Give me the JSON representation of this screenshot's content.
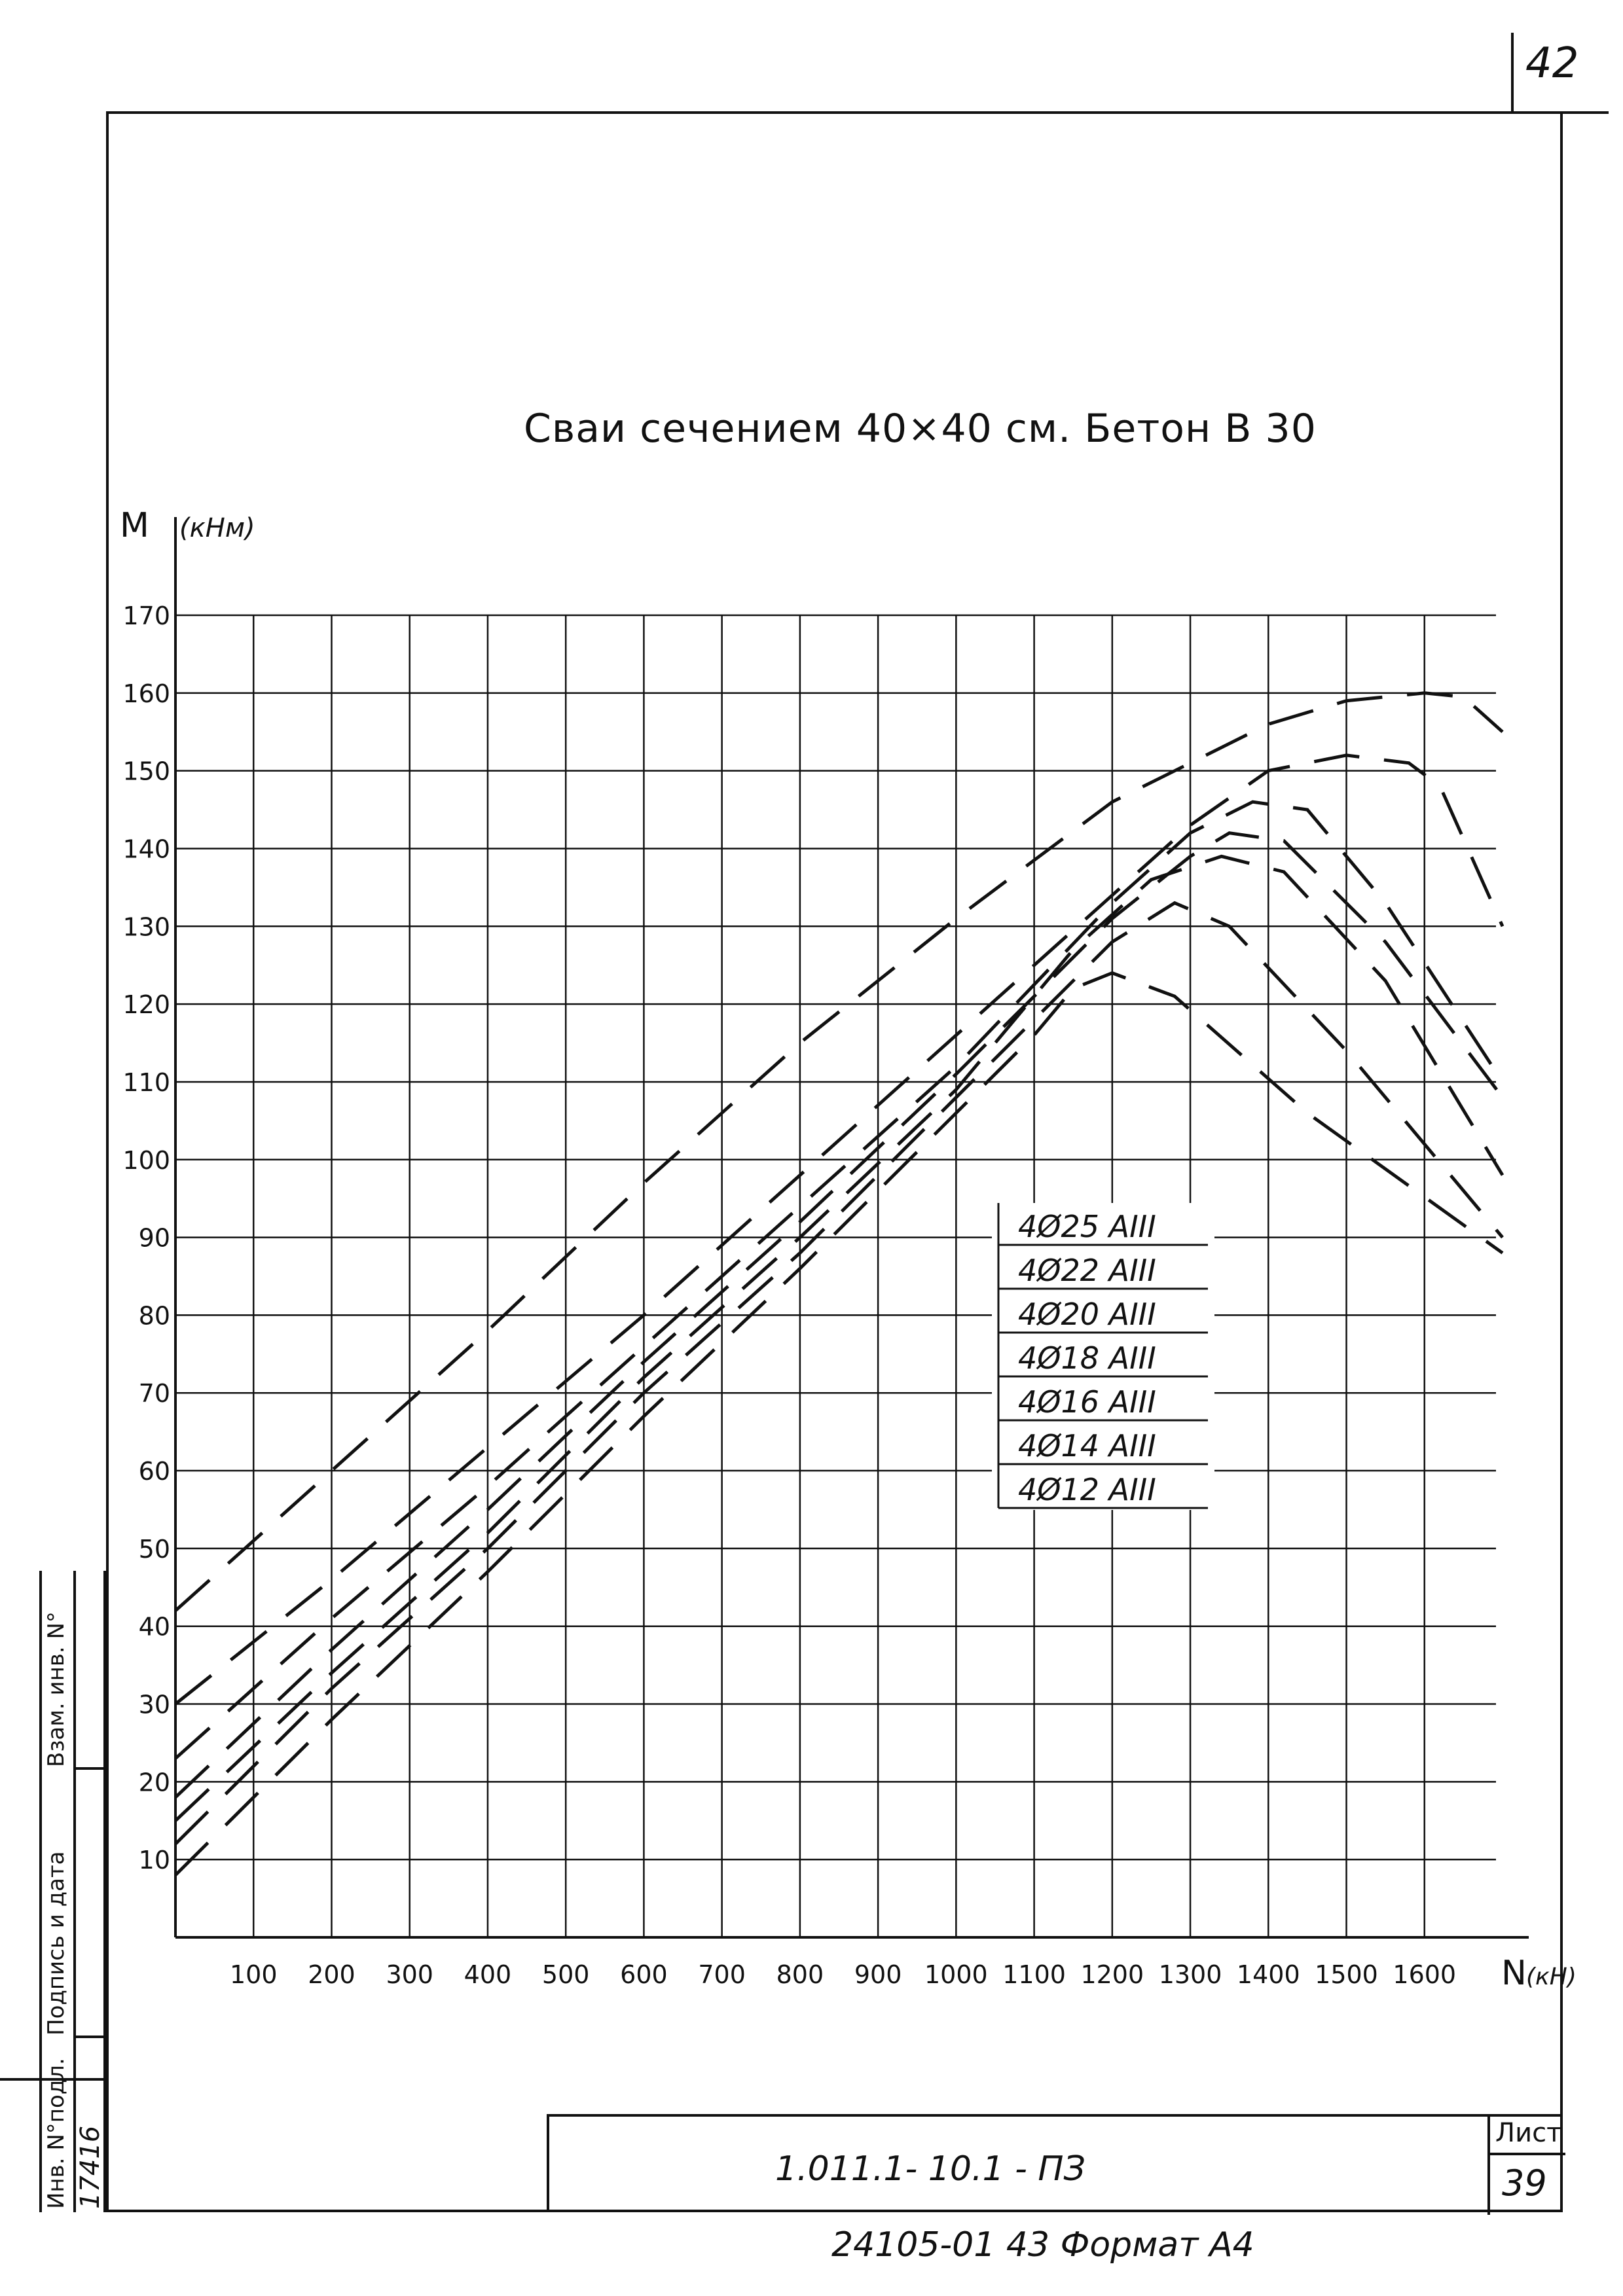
{
  "page_number": "42",
  "chart_data": {
    "type": "line",
    "title": "Сваи сечением 40×40 см. Бетон В 30",
    "ylabel": "M",
    "yunit": "(кНм)",
    "xlabel": "N",
    "xunit": "(кН)",
    "xlim": [
      0,
      1700
    ],
    "ylim": [
      0,
      170
    ],
    "xticks": [
      100,
      200,
      300,
      400,
      500,
      600,
      700,
      800,
      900,
      1000,
      1100,
      1200,
      1300,
      1400,
      1500,
      1600
    ],
    "yticks": [
      10,
      20,
      30,
      40,
      50,
      60,
      70,
      80,
      90,
      100,
      110,
      120,
      130,
      140,
      150,
      160,
      170
    ],
    "grid": true,
    "line_style": "dashed",
    "line_color": "#111111",
    "series": [
      {
        "name": "4Ø25 AIII",
        "x": [
          0,
          200,
          400,
          600,
          800,
          1000,
          1200,
          1400,
          1500,
          1600,
          1650,
          1700
        ],
        "y": [
          42,
          60,
          78,
          97,
          115,
          131,
          146,
          156,
          159,
          160,
          159.5,
          155
        ]
      },
      {
        "name": "4Ø22 AIII",
        "x": [
          0,
          200,
          400,
          600,
          800,
          1000,
          1200,
          1300,
          1400,
          1500,
          1580,
          1620,
          1700
        ],
        "y": [
          30,
          46,
          63,
          80,
          98,
          116,
          134,
          143,
          150,
          152,
          151,
          148,
          130
        ]
      },
      {
        "name": "4Ø20 AIII",
        "x": [
          0,
          200,
          400,
          600,
          800,
          1000,
          1200,
          1300,
          1380,
          1450,
          1550,
          1700
        ],
        "y": [
          23,
          41,
          58,
          76,
          94,
          112,
          133,
          142,
          146,
          145,
          133,
          110
        ]
      },
      {
        "name": "4Ø18 AIII",
        "x": [
          0,
          200,
          400,
          600,
          800,
          1000,
          1200,
          1300,
          1350,
          1420,
          1550,
          1700
        ],
        "y": [
          18,
          37,
          55,
          74,
          92,
          111,
          131,
          139,
          142,
          141,
          128,
          108
        ]
      },
      {
        "name": "4Ø16 AIII",
        "x": [
          0,
          200,
          400,
          600,
          800,
          1000,
          1150,
          1250,
          1340,
          1420,
          1550,
          1700
        ],
        "y": [
          15,
          34,
          52,
          72,
          90,
          109,
          127,
          136,
          139,
          137,
          123,
          98
        ]
      },
      {
        "name": "4Ø14 AIII",
        "x": [
          0,
          200,
          400,
          600,
          800,
          1000,
          1100,
          1200,
          1280,
          1350,
          1500,
          1700
        ],
        "y": [
          12,
          32,
          50,
          70,
          88,
          108,
          118,
          128,
          133,
          130,
          114,
          90
        ]
      },
      {
        "name": "4Ø12 AIII",
        "x": [
          0,
          200,
          400,
          600,
          800,
          1000,
          1100,
          1150,
          1200,
          1280,
          1450,
          1700
        ],
        "y": [
          8,
          28,
          47,
          67,
          86,
          106,
          116,
          122,
          124,
          121,
          106,
          88
        ]
      }
    ]
  },
  "side_stamp": {
    "col1": "Инв. N°подл.",
    "col1_value": "17416",
    "col2": "Подпись и дата",
    "col3": "Взам. инв. N°"
  },
  "title_block": {
    "code": "1.011.1- 10.1 -        ПЗ",
    "sheet_label": "Лист",
    "sheet_number": "39"
  },
  "bottom_note": "24105-01   43   Формат А4"
}
